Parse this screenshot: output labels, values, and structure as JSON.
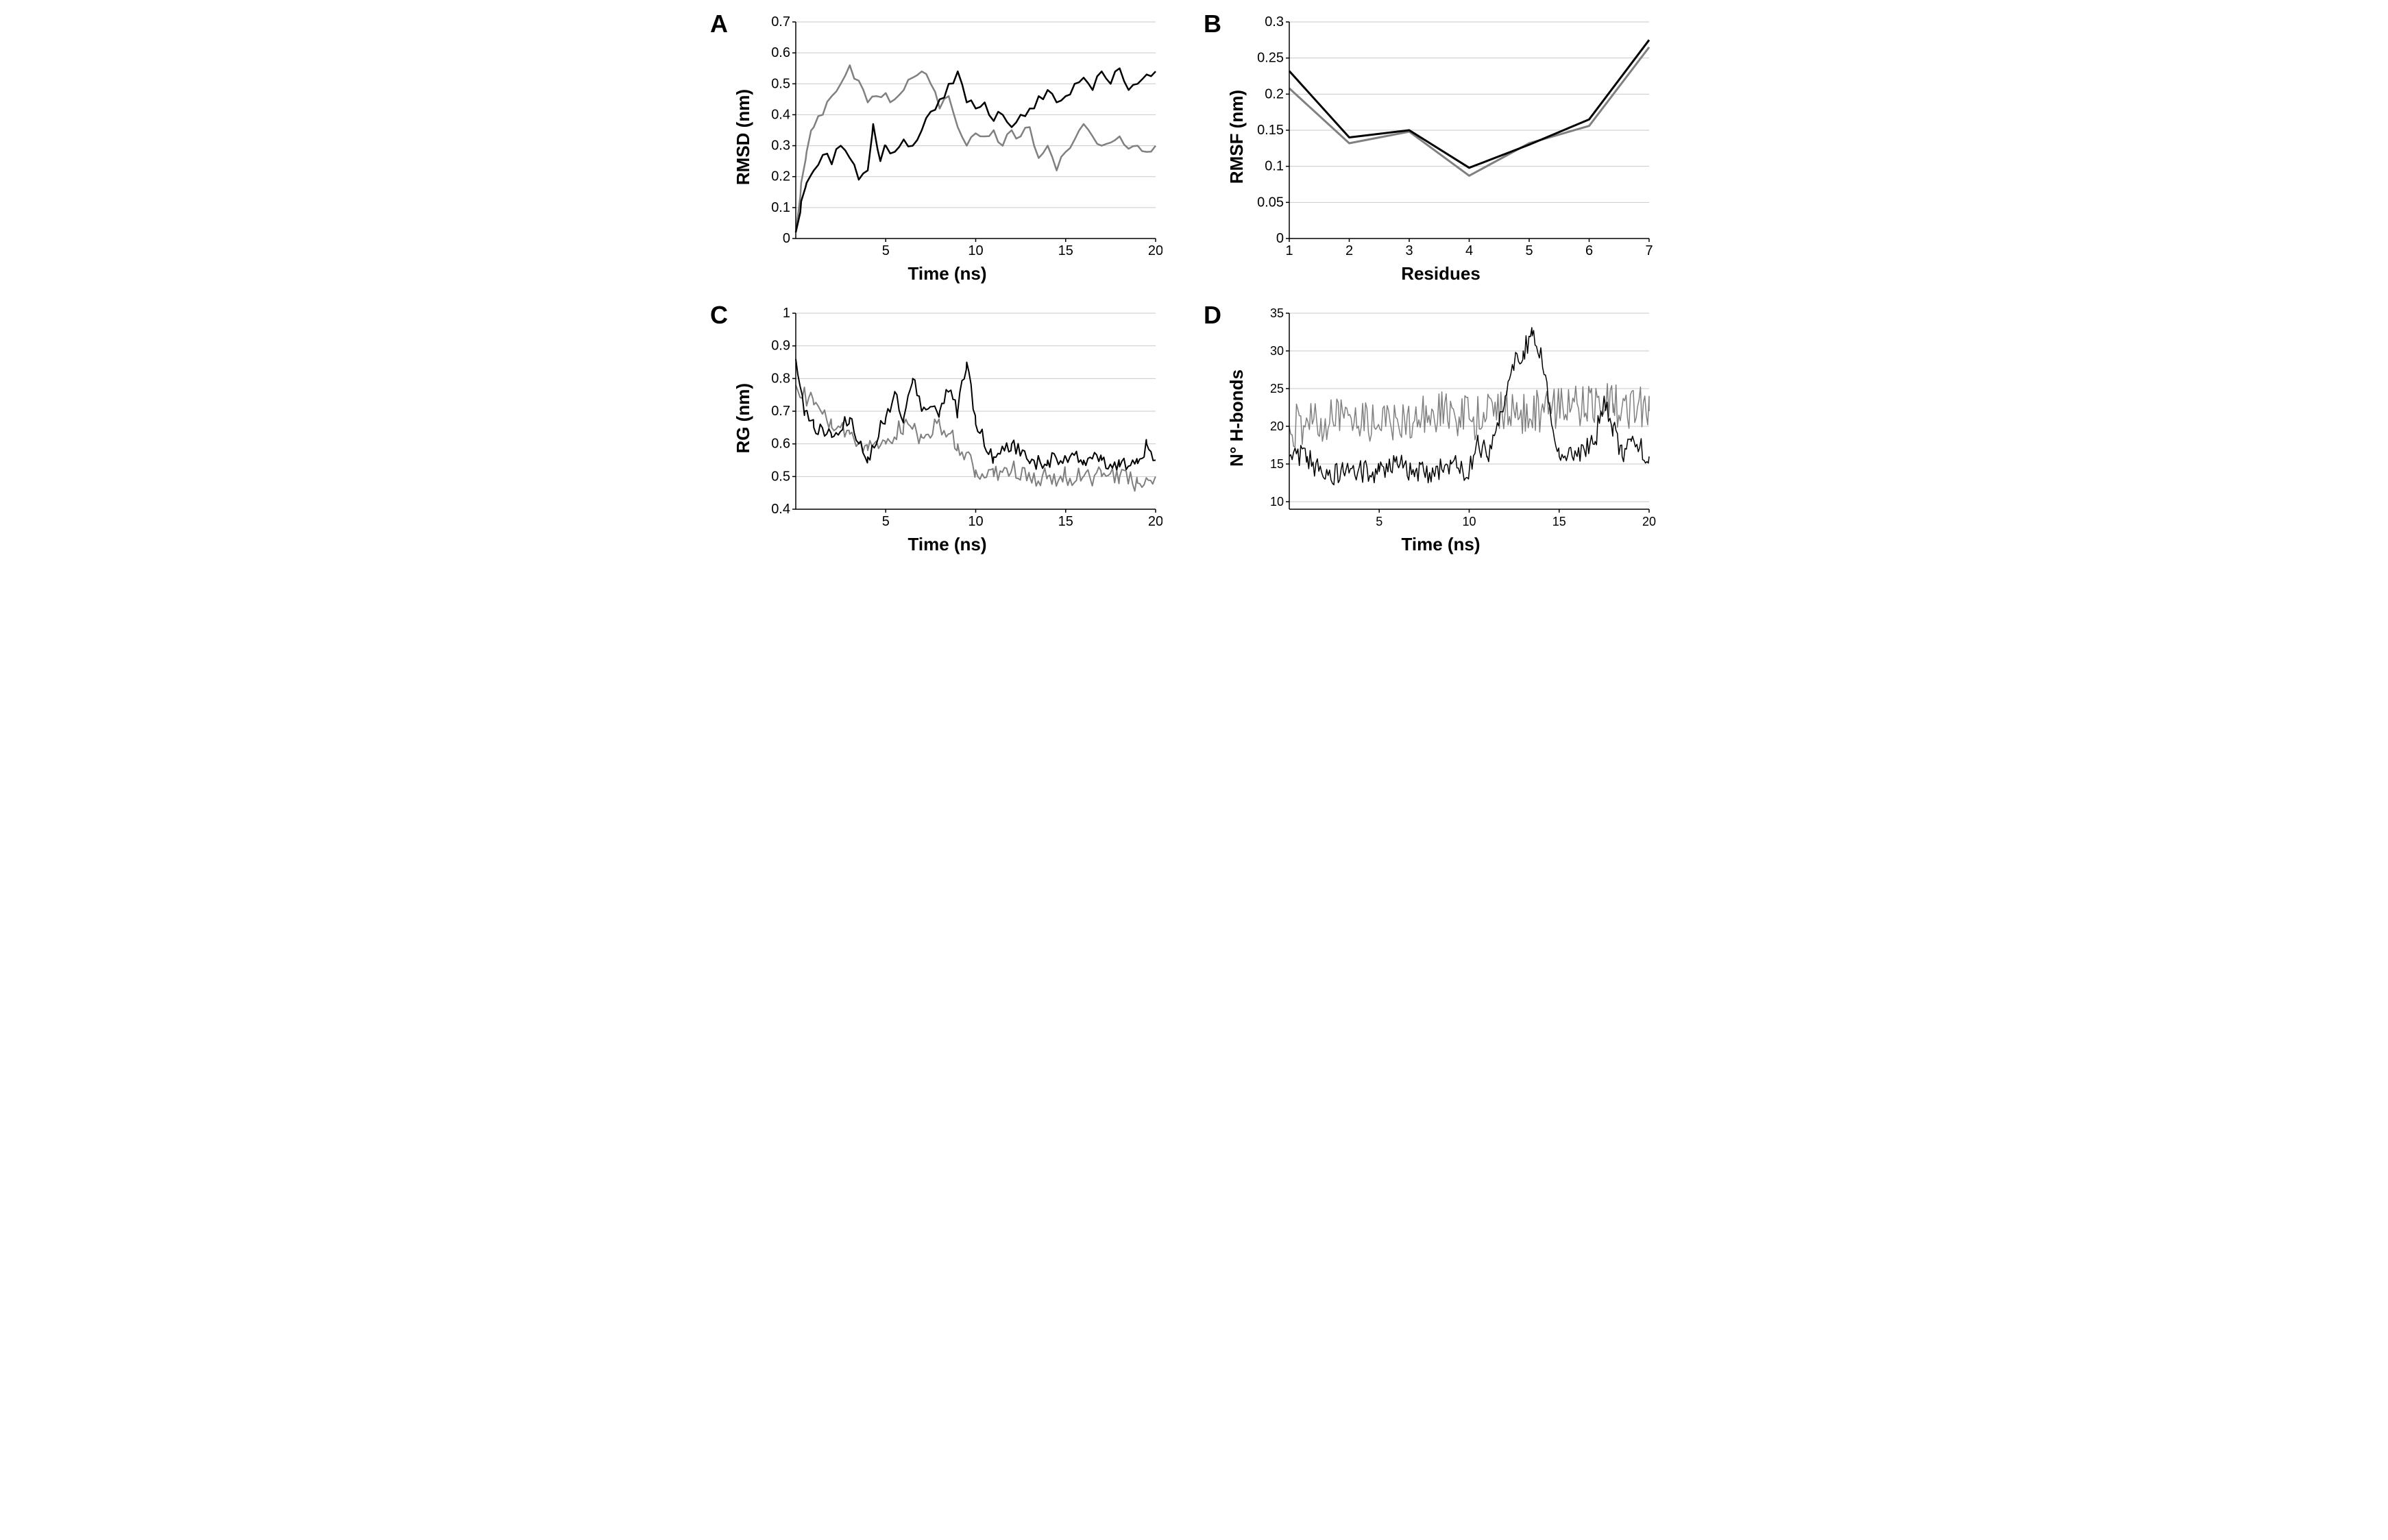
{
  "panels": {
    "A": {
      "label": "A",
      "type": "line",
      "xlabel": "Time (ns)",
      "ylabel": "RMSD (nm)",
      "xlim": [
        0,
        20
      ],
      "ylim": [
        0,
        0.7
      ],
      "xticks": [
        5,
        10,
        15,
        20
      ],
      "yticks": [
        0,
        0.1,
        0.2,
        0.3,
        0.4,
        0.5,
        0.6,
        0.7
      ],
      "background_color": "#ffffff",
      "grid_color": "#c9c9c9",
      "grid": "horizontal",
      "line_width": 2.5,
      "label_fontsize": 26,
      "tick_fontsize": 20,
      "series": [
        {
          "name": "series-gray",
          "color": "#808080",
          "noise": 0.04,
          "jag": 0.25,
          "points": [
            [
              0,
              0.02
            ],
            [
              0.3,
              0.18
            ],
            [
              0.6,
              0.28
            ],
            [
              1,
              0.36
            ],
            [
              1.5,
              0.4
            ],
            [
              2,
              0.46
            ],
            [
              2.5,
              0.5
            ],
            [
              3,
              0.56
            ],
            [
              3.5,
              0.51
            ],
            [
              4,
              0.44
            ],
            [
              4.5,
              0.46
            ],
            [
              5,
              0.47
            ],
            [
              5.5,
              0.45
            ],
            [
              6,
              0.48
            ],
            [
              6.5,
              0.52
            ],
            [
              7,
              0.54
            ],
            [
              7.5,
              0.5
            ],
            [
              8,
              0.42
            ],
            [
              8.5,
              0.46
            ],
            [
              9,
              0.36
            ],
            [
              9.5,
              0.3
            ],
            [
              10,
              0.34
            ],
            [
              10.5,
              0.33
            ],
            [
              11,
              0.35
            ],
            [
              11.5,
              0.3
            ],
            [
              12,
              0.35
            ],
            [
              12.5,
              0.33
            ],
            [
              13,
              0.36
            ],
            [
              13.5,
              0.26
            ],
            [
              14,
              0.3
            ],
            [
              14.5,
              0.22
            ],
            [
              15,
              0.28
            ],
            [
              15.5,
              0.32
            ],
            [
              16,
              0.37
            ],
            [
              16.5,
              0.33
            ],
            [
              17,
              0.3
            ],
            [
              17.5,
              0.31
            ],
            [
              18,
              0.33
            ],
            [
              18.5,
              0.29
            ],
            [
              19,
              0.3
            ],
            [
              19.5,
              0.28
            ],
            [
              20,
              0.3
            ]
          ]
        },
        {
          "name": "series-black",
          "color": "#000000",
          "noise": 0.04,
          "jag": 0.25,
          "points": [
            [
              0,
              0.02
            ],
            [
              0.3,
              0.12
            ],
            [
              0.6,
              0.18
            ],
            [
              1,
              0.22
            ],
            [
              1.5,
              0.27
            ],
            [
              2,
              0.24
            ],
            [
              2.5,
              0.3
            ],
            [
              3,
              0.26
            ],
            [
              3.5,
              0.19
            ],
            [
              4,
              0.22
            ],
            [
              4.3,
              0.37
            ],
            [
              4.7,
              0.25
            ],
            [
              5,
              0.3
            ],
            [
              5.5,
              0.28
            ],
            [
              6,
              0.32
            ],
            [
              6.5,
              0.3
            ],
            [
              7,
              0.35
            ],
            [
              7.5,
              0.41
            ],
            [
              8,
              0.45
            ],
            [
              8.5,
              0.5
            ],
            [
              9,
              0.54
            ],
            [
              9.5,
              0.44
            ],
            [
              10,
              0.42
            ],
            [
              10.5,
              0.44
            ],
            [
              11,
              0.38
            ],
            [
              11.5,
              0.4
            ],
            [
              12,
              0.36
            ],
            [
              12.5,
              0.4
            ],
            [
              13,
              0.42
            ],
            [
              13.5,
              0.46
            ],
            [
              14,
              0.48
            ],
            [
              14.5,
              0.44
            ],
            [
              15,
              0.46
            ],
            [
              15.5,
              0.5
            ],
            [
              16,
              0.52
            ],
            [
              16.5,
              0.48
            ],
            [
              17,
              0.54
            ],
            [
              17.5,
              0.5
            ],
            [
              18,
              0.55
            ],
            [
              18.5,
              0.48
            ],
            [
              19,
              0.5
            ],
            [
              19.5,
              0.53
            ],
            [
              20,
              0.54
            ]
          ]
        }
      ]
    },
    "B": {
      "label": "B",
      "type": "line",
      "xlabel": "Residues",
      "ylabel": "RMSF (nm)",
      "xlim": [
        1,
        7
      ],
      "ylim": [
        0,
        0.3
      ],
      "xticks": [
        1,
        2,
        3,
        4,
        5,
        6,
        7
      ],
      "yticks": [
        0,
        0.05,
        0.1,
        0.15,
        0.2,
        0.25,
        0.3
      ],
      "background_color": "#ffffff",
      "grid_color": "#c9c9c9",
      "grid": "horizontal",
      "line_width": 3,
      "smooth": true,
      "label_fontsize": 26,
      "tick_fontsize": 20,
      "series": [
        {
          "name": "series-gray",
          "color": "#808080",
          "points": [
            [
              1,
              0.208
            ],
            [
              2,
              0.132
            ],
            [
              3,
              0.148
            ],
            [
              4,
              0.087
            ],
            [
              5,
              0.132
            ],
            [
              6,
              0.156
            ],
            [
              7,
              0.265
            ]
          ]
        },
        {
          "name": "series-black",
          "color": "#000000",
          "points": [
            [
              1,
              0.232
            ],
            [
              2,
              0.14
            ],
            [
              3,
              0.15
            ],
            [
              4,
              0.098
            ],
            [
              5,
              0.13
            ],
            [
              6,
              0.165
            ],
            [
              7,
              0.275
            ]
          ]
        }
      ]
    },
    "C": {
      "label": "C",
      "type": "line",
      "xlabel": "Time (ns)",
      "ylabel": "RG (nm)",
      "xlim": [
        0,
        20
      ],
      "ylim": [
        0.4,
        1.0
      ],
      "xticks": [
        5,
        10,
        15,
        20
      ],
      "yticks": [
        0.4,
        0.5,
        0.6,
        0.7,
        0.8,
        0.9,
        1.0
      ],
      "ytick_labels": [
        "0.4",
        "0.5",
        "0.6",
        "0.7",
        "0.8",
        "0.9",
        "1"
      ],
      "background_color": "#ffffff",
      "grid_color": "#c9c9c9",
      "grid": "horizontal",
      "line_width": 2,
      "label_fontsize": 26,
      "tick_fontsize": 20,
      "series": [
        {
          "name": "series-gray",
          "color": "#808080",
          "noise": 0.06,
          "jag": 0.12,
          "points": [
            [
              0,
              0.78
            ],
            [
              1,
              0.72
            ],
            [
              2,
              0.65
            ],
            [
              3,
              0.63
            ],
            [
              4,
              0.58
            ],
            [
              5,
              0.6
            ],
            [
              6,
              0.66
            ],
            [
              7,
              0.62
            ],
            [
              8,
              0.66
            ],
            [
              9,
              0.6
            ],
            [
              10,
              0.52
            ],
            [
              11,
              0.5
            ],
            [
              12,
              0.52
            ],
            [
              13,
              0.5
            ],
            [
              14,
              0.5
            ],
            [
              15,
              0.5
            ],
            [
              16,
              0.5
            ],
            [
              17,
              0.5
            ],
            [
              18,
              0.5
            ],
            [
              19,
              0.48
            ],
            [
              20,
              0.5
            ]
          ]
        },
        {
          "name": "series-black",
          "color": "#000000",
          "noise": 0.05,
          "jag": 0.12,
          "points": [
            [
              0,
              0.86
            ],
            [
              0.5,
              0.7
            ],
            [
              1,
              0.65
            ],
            [
              2,
              0.62
            ],
            [
              3,
              0.68
            ],
            [
              3.5,
              0.6
            ],
            [
              4,
              0.56
            ],
            [
              5,
              0.68
            ],
            [
              5.5,
              0.76
            ],
            [
              6,
              0.68
            ],
            [
              6.5,
              0.8
            ],
            [
              7,
              0.7
            ],
            [
              8,
              0.7
            ],
            [
              8.5,
              0.76
            ],
            [
              9,
              0.7
            ],
            [
              9.5,
              0.85
            ],
            [
              10,
              0.66
            ],
            [
              11,
              0.56
            ],
            [
              12,
              0.6
            ],
            [
              13,
              0.54
            ],
            [
              14,
              0.55
            ],
            [
              15,
              0.56
            ],
            [
              16,
              0.55
            ],
            [
              17,
              0.55
            ],
            [
              18,
              0.53
            ],
            [
              19,
              0.54
            ],
            [
              19.5,
              0.6
            ],
            [
              20,
              0.55
            ]
          ]
        }
      ]
    },
    "D": {
      "label": "D",
      "type": "line",
      "xlabel": "Time (ns)",
      "ylabel": "N° H-bonds",
      "xlim": [
        0,
        20
      ],
      "ylim": [
        9,
        35
      ],
      "xticks": [
        5,
        10,
        15,
        20
      ],
      "yticks": [
        10,
        15,
        20,
        25,
        30,
        35
      ],
      "background_color": "#ffffff",
      "grid_color": "#c9c9c9",
      "grid": "horizontal",
      "line_width": 1.5,
      "label_fontsize": 26,
      "tick_fontsize": 18,
      "series": [
        {
          "name": "series-gray",
          "color": "#808080",
          "noise": 6,
          "jag": 0.08,
          "points": [
            [
              0,
              20
            ],
            [
              2,
              21
            ],
            [
              4,
              20
            ],
            [
              6,
              21
            ],
            [
              8,
              22
            ],
            [
              10,
              21
            ],
            [
              12,
              22
            ],
            [
              14,
              22
            ],
            [
              16,
              23
            ],
            [
              18,
              23
            ],
            [
              20,
              22
            ]
          ]
        },
        {
          "name": "series-black",
          "color": "#000000",
          "noise": 3,
          "jag": 0.08,
          "points": [
            [
              0,
              16
            ],
            [
              1,
              16
            ],
            [
              2,
              13
            ],
            [
              3,
              14
            ],
            [
              4,
              14
            ],
            [
              5,
              14
            ],
            [
              6,
              15
            ],
            [
              7,
              14
            ],
            [
              8,
              14
            ],
            [
              9,
              15
            ],
            [
              10,
              14
            ],
            [
              10.5,
              18
            ],
            [
              11,
              16
            ],
            [
              12,
              24
            ],
            [
              12.5,
              28
            ],
            [
              13,
              30
            ],
            [
              13.5,
              32
            ],
            [
              14,
              30
            ],
            [
              14.5,
              22
            ],
            [
              15,
              16
            ],
            [
              16,
              16
            ],
            [
              17,
              18
            ],
            [
              17.5,
              24
            ],
            [
              18,
              20
            ],
            [
              18.5,
              16
            ],
            [
              19,
              18
            ],
            [
              20,
              16
            ]
          ]
        }
      ]
    }
  },
  "panel_label_fontsize": 36,
  "font_family": "Arial"
}
